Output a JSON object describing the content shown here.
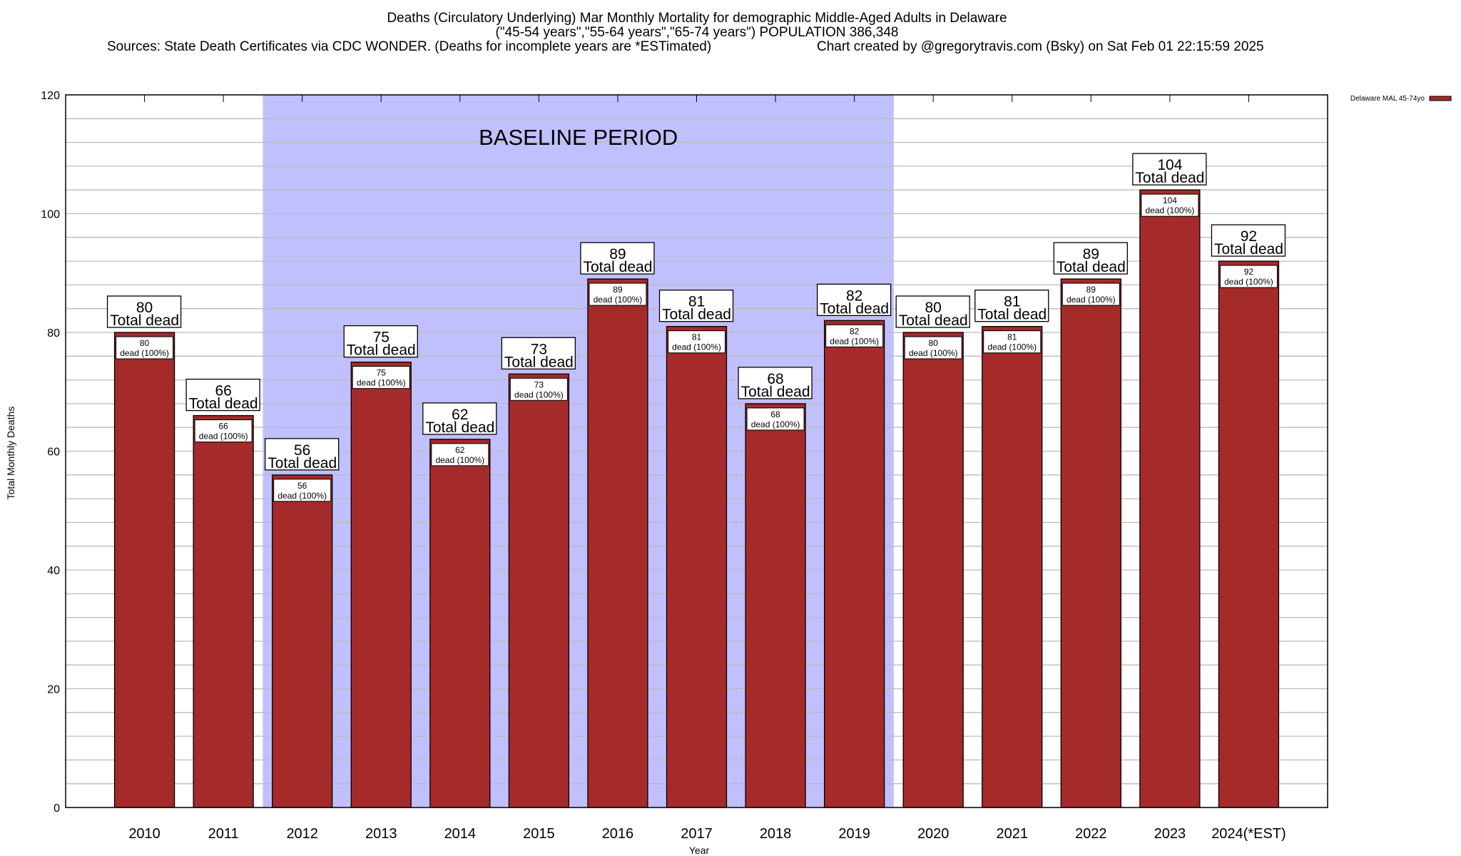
{
  "chart_data": {
    "type": "bar",
    "title_lines": [
      "Deaths (Circulatory Underlying) Mar Monthly Mortality for demographic Middle-Aged Adults in Delaware",
      "(\"45-54 years\",\"55-64 years\",\"65-74 years\") POPULATION 386,348"
    ],
    "sources": "Sources: State Death Certificates via CDC WONDER. (Deaths for incomplete years are *ESTimated)",
    "credit": "Chart created by @gregorytravis.com (Bsky) on Sat Feb 01 22:15:59 2025",
    "xlabel": "Year",
    "ylabel": "Total Monthly Deaths",
    "ylim": [
      0,
      120
    ],
    "yticks": [
      0,
      20,
      40,
      60,
      80,
      100,
      120
    ],
    "grid": true,
    "categories": [
      "2010",
      "2011",
      "2012",
      "2013",
      "2014",
      "2015",
      "2016",
      "2017",
      "2018",
      "2019",
      "2020",
      "2021",
      "2022",
      "2023",
      "2024(*EST)"
    ],
    "series": [
      {
        "name": "Delaware MAL 45-74yo",
        "color": "#a52a2a",
        "values": [
          80,
          66,
          56,
          75,
          62,
          73,
          89,
          81,
          68,
          82,
          80,
          81,
          89,
          104,
          92
        ]
      }
    ],
    "top_label_suffix": "Total dead",
    "inner_label_suffix": "dead (100%)",
    "baseline": {
      "label": "BASELINE PERIOD",
      "from": "2012",
      "to": "2019",
      "color": "#c0c0ff"
    },
    "legend_position": "top-right"
  }
}
